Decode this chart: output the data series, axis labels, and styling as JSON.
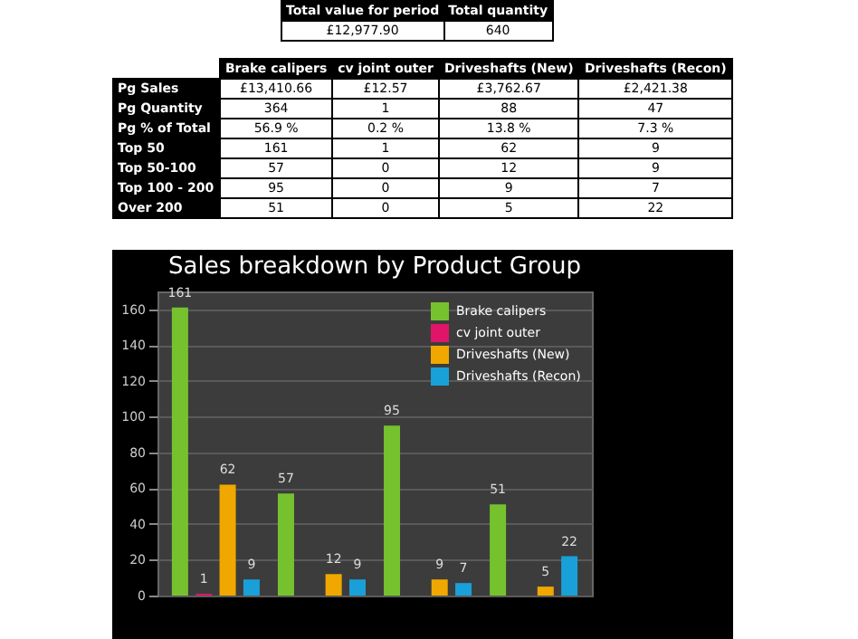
{
  "chart_data": {
    "type": "bar",
    "title": "Sales breakdown by Product Group",
    "categories": [
      null,
      null,
      null,
      null
    ],
    "series": [
      {
        "name": "Brake calipers",
        "color": "#76c22e",
        "values": [
          161,
          57,
          95,
          51
        ],
        "value_labels": [
          "161",
          "57",
          "95",
          "51"
        ]
      },
      {
        "name": "cv joint outer",
        "color": "#e0156a",
        "values": [
          1,
          0,
          0,
          0
        ],
        "value_labels": [
          "1",
          null,
          null,
          null
        ]
      },
      {
        "name": "Driveshafts (New)",
        "color": "#f0a800",
        "values": [
          62,
          12,
          9,
          5
        ],
        "value_labels": [
          "62",
          "12",
          "9",
          "5"
        ]
      },
      {
        "name": "Driveshafts (Recon)",
        "color": "#1aa0d8",
        "values": [
          9,
          9,
          7,
          22
        ],
        "value_labels": [
          "9",
          "9",
          "7",
          "22"
        ]
      }
    ],
    "ylim": [
      0,
      170
    ],
    "yticks": [
      0,
      20,
      40,
      60,
      80,
      100,
      120,
      140,
      160
    ],
    "grid": "y",
    "legend": "top right",
    "tick_labels": "y",
    "annotations": [
      "Total value for period",
      "Total quantity",
      "£12,977.90",
      "640",
      "Brake calipers",
      "cv joint outer",
      "Driveshafts (New)",
      "Driveshafts (Recon)",
      "Pg Sales",
      "£13,410.66",
      "£12.57",
      "£3,762.67",
      "£2,421.38",
      "Pg Quantity",
      "364",
      "1",
      "88",
      "47",
      "Pg % of Total",
      "56.9 %",
      "0.2 %",
      "13.8 %",
      "7.3 %",
      "Top 50",
      "161",
      "1",
      "62",
      "9",
      "Top 50-100",
      "57",
      "0",
      "12",
      "9",
      "Top 100 - 200",
      "95",
      "0",
      "9",
      "7",
      "Over 200",
      "51",
      "0",
      "5",
      "22"
    ]
  }
}
